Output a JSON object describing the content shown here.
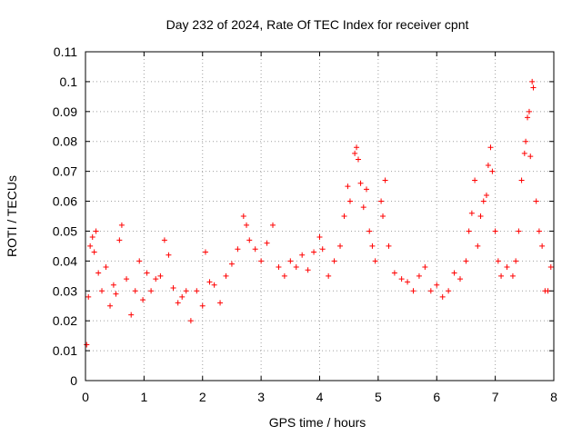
{
  "chart_data": {
    "type": "scatter",
    "title": "Day 232 of 2024, Rate Of TEC Index for receiver cpnt",
    "xlabel": "GPS time / hours",
    "ylabel": "ROTI / TECUs",
    "xlim": [
      0,
      8
    ],
    "ylim": [
      0,
      0.11
    ],
    "xticks": [
      0,
      1,
      2,
      3,
      4,
      5,
      6,
      7,
      8
    ],
    "xtick_labels": [
      "0",
      "1",
      "2",
      "3",
      "4",
      "5",
      "6",
      "7",
      "8"
    ],
    "yticks": [
      0,
      0.01,
      0.02,
      0.03,
      0.04,
      0.05,
      0.06,
      0.07,
      0.08,
      0.09,
      0.1,
      0.11
    ],
    "ytick_labels": [
      "0",
      "0.01",
      "0.02",
      "0.03",
      "0.04",
      "0.05",
      "0.06",
      "0.07",
      "0.08",
      "0.09",
      "0.1",
      "0.11"
    ],
    "grid": true,
    "marker": "+",
    "color": "#ff0000",
    "series": [
      {
        "name": "ROTI",
        "points": [
          [
            0.02,
            0.012
          ],
          [
            0.05,
            0.028
          ],
          [
            0.08,
            0.045
          ],
          [
            0.12,
            0.048
          ],
          [
            0.15,
            0.043
          ],
          [
            0.18,
            0.05
          ],
          [
            0.22,
            0.036
          ],
          [
            0.28,
            0.03
          ],
          [
            0.35,
            0.038
          ],
          [
            0.42,
            0.025
          ],
          [
            0.48,
            0.032
          ],
          [
            0.52,
            0.029
          ],
          [
            0.58,
            0.047
          ],
          [
            0.62,
            0.052
          ],
          [
            0.7,
            0.034
          ],
          [
            0.78,
            0.022
          ],
          [
            0.85,
            0.03
          ],
          [
            0.92,
            0.04
          ],
          [
            0.98,
            0.027
          ],
          [
            1.05,
            0.036
          ],
          [
            1.12,
            0.03
          ],
          [
            1.2,
            0.034
          ],
          [
            1.28,
            0.035
          ],
          [
            1.35,
            0.047
          ],
          [
            1.42,
            0.042
          ],
          [
            1.5,
            0.031
          ],
          [
            1.58,
            0.026
          ],
          [
            1.65,
            0.028
          ],
          [
            1.72,
            0.03
          ],
          [
            1.8,
            0.02
          ],
          [
            1.9,
            0.03
          ],
          [
            2.0,
            0.025
          ],
          [
            2.05,
            0.043
          ],
          [
            2.12,
            0.033
          ],
          [
            2.2,
            0.032
          ],
          [
            2.3,
            0.026
          ],
          [
            2.4,
            0.035
          ],
          [
            2.5,
            0.039
          ],
          [
            2.6,
            0.044
          ],
          [
            2.7,
            0.055
          ],
          [
            2.75,
            0.052
          ],
          [
            2.8,
            0.047
          ],
          [
            2.9,
            0.044
          ],
          [
            3.0,
            0.04
          ],
          [
            3.1,
            0.046
          ],
          [
            3.2,
            0.052
          ],
          [
            3.3,
            0.038
          ],
          [
            3.4,
            0.035
          ],
          [
            3.5,
            0.04
          ],
          [
            3.6,
            0.038
          ],
          [
            3.7,
            0.042
          ],
          [
            3.8,
            0.037
          ],
          [
            3.9,
            0.043
          ],
          [
            4.0,
            0.048
          ],
          [
            4.05,
            0.044
          ],
          [
            4.15,
            0.035
          ],
          [
            4.25,
            0.04
          ],
          [
            4.35,
            0.045
          ],
          [
            4.42,
            0.055
          ],
          [
            4.48,
            0.065
          ],
          [
            4.52,
            0.06
          ],
          [
            4.6,
            0.076
          ],
          [
            4.63,
            0.078
          ],
          [
            4.66,
            0.074
          ],
          [
            4.7,
            0.066
          ],
          [
            4.75,
            0.058
          ],
          [
            4.8,
            0.064
          ],
          [
            4.85,
            0.05
          ],
          [
            4.9,
            0.045
          ],
          [
            4.95,
            0.04
          ],
          [
            5.05,
            0.06
          ],
          [
            5.08,
            0.055
          ],
          [
            5.12,
            0.067
          ],
          [
            5.18,
            0.045
          ],
          [
            5.28,
            0.036
          ],
          [
            5.4,
            0.034
          ],
          [
            5.5,
            0.033
          ],
          [
            5.6,
            0.03
          ],
          [
            5.7,
            0.035
          ],
          [
            5.8,
            0.038
          ],
          [
            5.9,
            0.03
          ],
          [
            6.0,
            0.032
          ],
          [
            6.1,
            0.028
          ],
          [
            6.2,
            0.03
          ],
          [
            6.3,
            0.036
          ],
          [
            6.4,
            0.034
          ],
          [
            6.5,
            0.04
          ],
          [
            6.55,
            0.05
          ],
          [
            6.6,
            0.056
          ],
          [
            6.65,
            0.067
          ],
          [
            6.7,
            0.045
          ],
          [
            6.75,
            0.055
          ],
          [
            6.8,
            0.06
          ],
          [
            6.85,
            0.062
          ],
          [
            6.88,
            0.072
          ],
          [
            6.92,
            0.078
          ],
          [
            6.95,
            0.07
          ],
          [
            7.0,
            0.05
          ],
          [
            7.05,
            0.04
          ],
          [
            7.1,
            0.035
          ],
          [
            7.2,
            0.038
          ],
          [
            7.3,
            0.035
          ],
          [
            7.35,
            0.04
          ],
          [
            7.4,
            0.05
          ],
          [
            7.45,
            0.067
          ],
          [
            7.5,
            0.076
          ],
          [
            7.52,
            0.08
          ],
          [
            7.55,
            0.088
          ],
          [
            7.58,
            0.09
          ],
          [
            7.6,
            0.075
          ],
          [
            7.63,
            0.1
          ],
          [
            7.65,
            0.098
          ],
          [
            7.7,
            0.06
          ],
          [
            7.75,
            0.05
          ],
          [
            7.8,
            0.045
          ],
          [
            7.85,
            0.03
          ],
          [
            7.9,
            0.03
          ],
          [
            7.95,
            0.038
          ]
        ]
      }
    ]
  }
}
